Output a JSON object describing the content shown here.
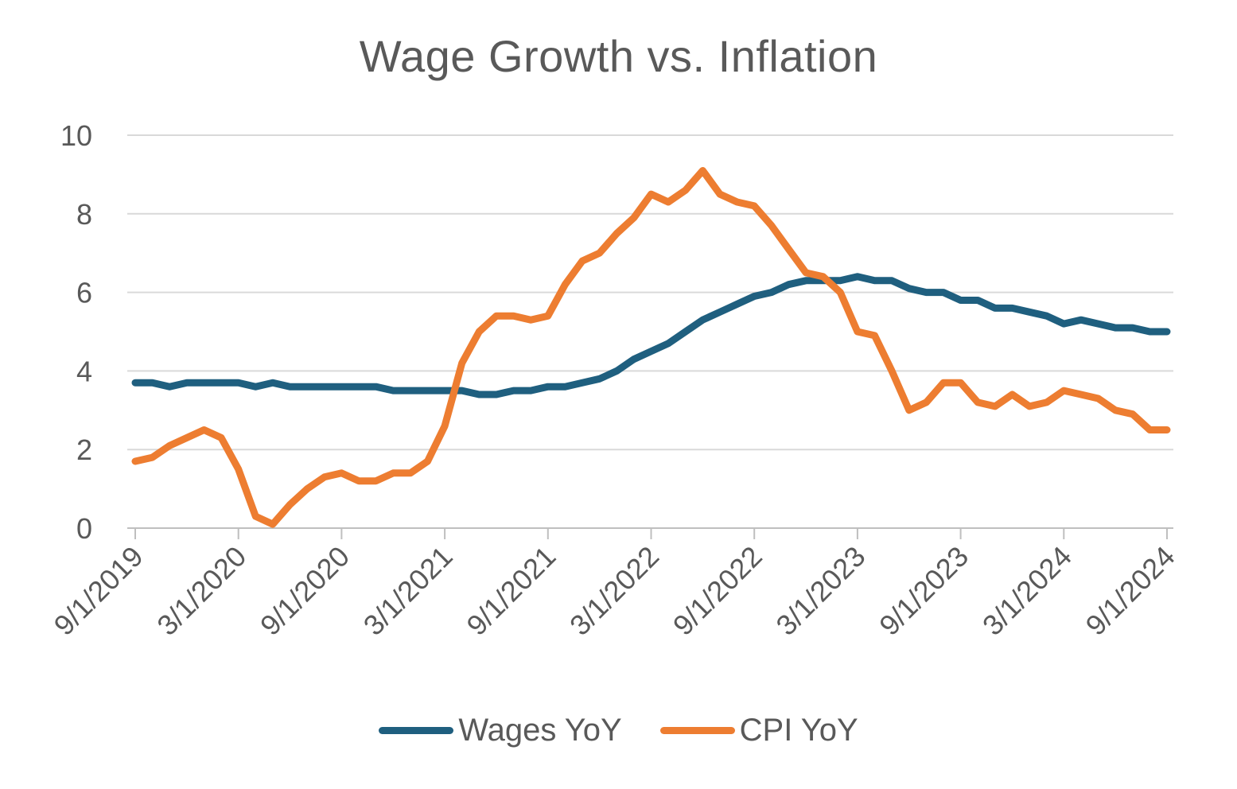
{
  "chart_data": {
    "type": "line",
    "title": "Wage Growth vs. Inflation",
    "xlabel": "",
    "ylabel": "",
    "ylim": [
      0,
      10
    ],
    "yticks": [
      "0",
      "2",
      "4",
      "6",
      "8",
      "10"
    ],
    "x_tick_labels": [
      "9/1/2019",
      "3/1/2020",
      "9/1/2020",
      "3/1/2021",
      "9/1/2021",
      "3/1/2022",
      "9/1/2022",
      "3/1/2023",
      "9/1/2023",
      "3/1/2024",
      "9/1/2024"
    ],
    "x_start": "2019-09",
    "x_end": "2024-09",
    "grid": "horizontal",
    "legend": "bottom",
    "series": [
      {
        "name": "Wages YoY",
        "color": "#1f5f7f",
        "values": [
          3.7,
          3.7,
          3.6,
          3.7,
          3.7,
          3.7,
          3.7,
          3.6,
          3.7,
          3.6,
          3.6,
          3.6,
          3.6,
          3.6,
          3.6,
          3.5,
          3.5,
          3.5,
          3.5,
          3.5,
          3.4,
          3.4,
          3.5,
          3.5,
          3.6,
          3.6,
          3.7,
          3.8,
          4.0,
          4.3,
          4.5,
          4.7,
          5.0,
          5.3,
          5.5,
          5.7,
          5.9,
          6.0,
          6.2,
          6.3,
          6.3,
          6.3,
          6.4,
          6.3,
          6.3,
          6.1,
          6.0,
          6.0,
          5.8,
          5.8,
          5.6,
          5.6,
          5.5,
          5.4,
          5.2,
          5.3,
          5.2,
          5.1,
          5.1,
          5.0,
          5.0
        ]
      },
      {
        "name": "CPI YoY",
        "color": "#ed7d31",
        "values": [
          1.7,
          1.8,
          2.1,
          2.3,
          2.5,
          2.3,
          1.5,
          0.3,
          0.1,
          0.6,
          1.0,
          1.3,
          1.4,
          1.2,
          1.2,
          1.4,
          1.4,
          1.7,
          2.6,
          4.2,
          5.0,
          5.4,
          5.4,
          5.3,
          5.4,
          6.2,
          6.8,
          7.0,
          7.5,
          7.9,
          8.5,
          8.3,
          8.6,
          9.1,
          8.5,
          8.3,
          8.2,
          7.7,
          7.1,
          6.5,
          6.4,
          6.0,
          5.0,
          4.9,
          4.0,
          3.0,
          3.2,
          3.7,
          3.7,
          3.2,
          3.1,
          3.4,
          3.1,
          3.2,
          3.5,
          3.4,
          3.3,
          3.0,
          2.9,
          2.5,
          2.5
        ]
      }
    ]
  }
}
